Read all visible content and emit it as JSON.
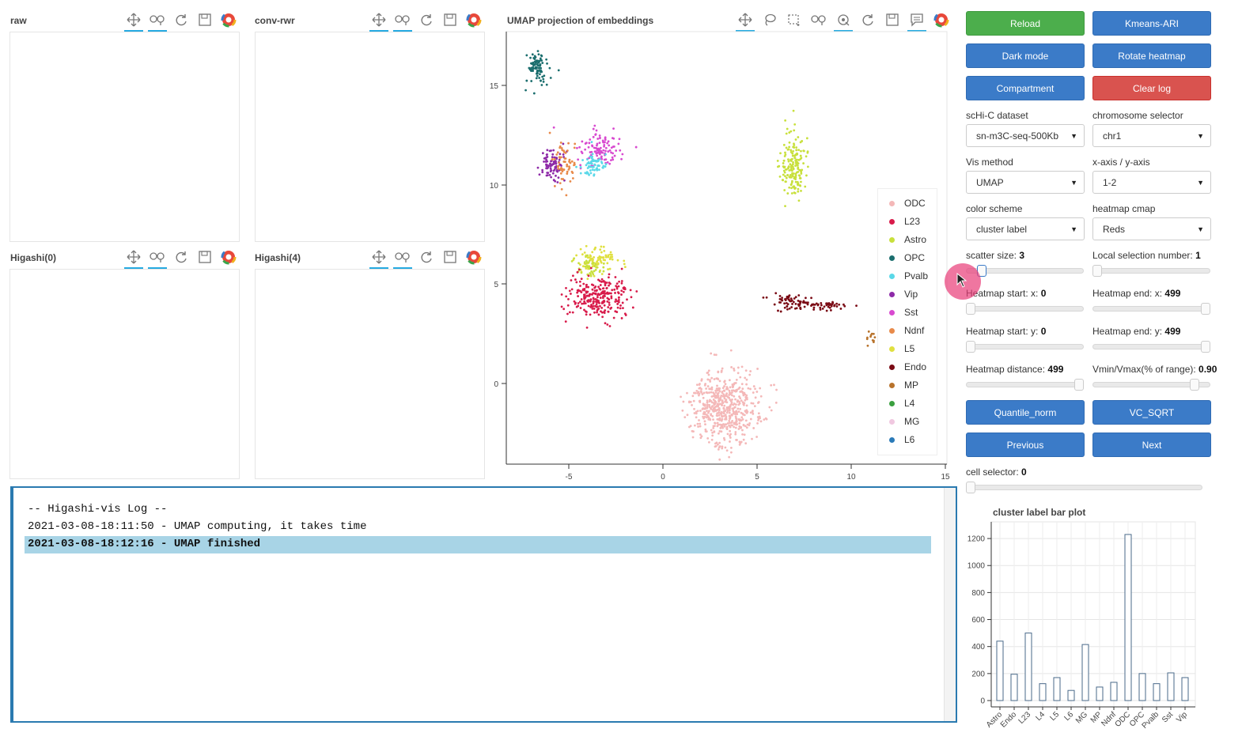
{
  "panels": [
    {
      "title": "raw"
    },
    {
      "title": "conv-rwr"
    },
    {
      "title": "Higashi(0)"
    },
    {
      "title": "Higashi(4)"
    }
  ],
  "scatter": {
    "title": "UMAP projection of embeddings",
    "x_ticks": [
      "-5",
      "0",
      "5",
      "10",
      "15"
    ],
    "y_ticks": [
      "15",
      "10",
      "5",
      "0"
    ]
  },
  "legend": [
    {
      "label": "ODC",
      "color": "#f4b8b8"
    },
    {
      "label": "L23",
      "color": "#d81b4a"
    },
    {
      "label": "Astro",
      "color": "#c8e03c"
    },
    {
      "label": "OPC",
      "color": "#1b6e6e"
    },
    {
      "label": "Pvalb",
      "color": "#5ad8e8"
    },
    {
      "label": "Vip",
      "color": "#8e2aa8"
    },
    {
      "label": "Sst",
      "color": "#d84ad0"
    },
    {
      "label": "Ndnf",
      "color": "#e88a4a"
    },
    {
      "label": "L5",
      "color": "#e0e040"
    },
    {
      "label": "Endo",
      "color": "#7a0a14"
    },
    {
      "label": "MP",
      "color": "#b8732c"
    },
    {
      "label": "L4",
      "color": "#3aa040"
    },
    {
      "label": "MG",
      "color": "#f0c8e0"
    },
    {
      "label": "L6",
      "color": "#2a7ab8"
    }
  ],
  "buttons": {
    "reload": "Reload",
    "kmeans": "Kmeans-ARI",
    "dark_mode": "Dark mode",
    "rotate_heatmap": "Rotate heatmap",
    "compartment": "Compartment",
    "clear_log": "Clear log",
    "quantile_norm": "Quantile_norm",
    "vc_sqrt": "VC_SQRT",
    "previous": "Previous",
    "next": "Next"
  },
  "controls": {
    "dataset_label": "scHi-C dataset",
    "dataset_value": "sn-m3C-seq-500Kb",
    "chrom_label": "chromosome selector",
    "chrom_value": "chr1",
    "vis_label": "Vis method",
    "vis_value": "UMAP",
    "axis_label": "x-axis / y-axis",
    "axis_value": "1-2",
    "color_label": "color scheme",
    "color_value": "cluster label",
    "cmap_label": "heatmap cmap",
    "cmap_value": "Reds"
  },
  "sliders": {
    "scatter_size": {
      "label": "scatter size: ",
      "value": "3",
      "level": 0.1
    },
    "local_sel": {
      "label": "Local selection number: ",
      "value": "1",
      "level": 0.0
    },
    "hm_start_x": {
      "label": "Heatmap start: x: ",
      "value": "0",
      "level": 0.0
    },
    "hm_end_x": {
      "label": "Heatmap end: x: ",
      "value": "499",
      "level": 1.0
    },
    "hm_start_y": {
      "label": "Heatmap start: y: ",
      "value": "0",
      "level": 0.0
    },
    "hm_end_y": {
      "label": "Heatmap end: y: ",
      "value": "499",
      "level": 1.0
    },
    "hm_distance": {
      "label": "Heatmap distance: ",
      "value": "499",
      "level": 1.0
    },
    "vmin_vmax": {
      "label": "Vmin/Vmax(% of range): ",
      "value": "0.90",
      "level": 0.9
    },
    "cell_selector": {
      "label": "cell selector: ",
      "value": "0",
      "level": 0.0
    }
  },
  "log": {
    "lines": [
      "-- Higashi-vis Log --",
      "2021-03-08-18:11:50 - UMAP computing, it takes time",
      "2021-03-08-18:12:16 - UMAP finished"
    ]
  },
  "chart_data": {
    "type": "bar",
    "title": "cluster label bar plot",
    "categories": [
      "Astro",
      "Endo",
      "L23",
      "L4",
      "L5",
      "L6",
      "MG",
      "MP",
      "Ndnf",
      "ODC",
      "OPC",
      "Pvalb",
      "Sst",
      "Vip"
    ],
    "values": [
      440,
      195,
      500,
      125,
      170,
      75,
      415,
      100,
      135,
      1230,
      200,
      125,
      205,
      170
    ],
    "ylim": [
      0,
      1300
    ],
    "y_ticks": [
      "0",
      "200",
      "400",
      "600",
      "800",
      "1000",
      "1200"
    ],
    "grid": true
  }
}
